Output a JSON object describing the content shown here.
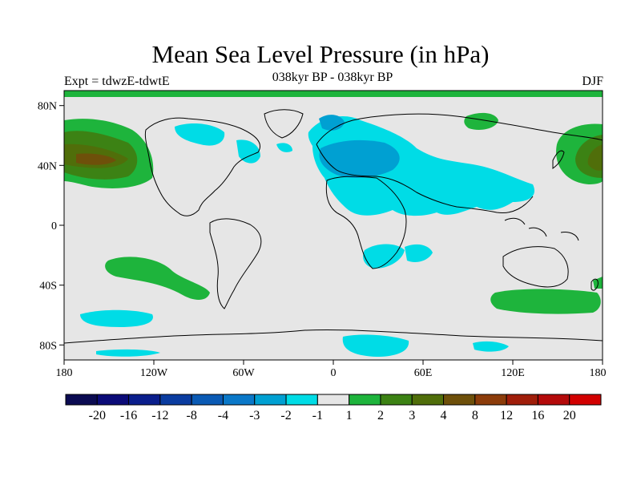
{
  "header": {
    "title": "Mean Sea Level Pressure (in hPa)",
    "left_label": "Expt = tdwzE-tdwtE",
    "center_label": "038kyr BP - 038kyr BP",
    "right_label": "DJF"
  },
  "axes": {
    "lat_ticks": [
      "80N",
      "40N",
      "0",
      "40S",
      "80S"
    ],
    "lon_ticks": [
      "180",
      "120W",
      "60W",
      "0",
      "60E",
      "120E",
      "180"
    ]
  },
  "colorbar": {
    "labels": [
      "-20",
      "-16",
      "-12",
      "-8",
      "-4",
      "-3",
      "-2",
      "-1",
      "1",
      "2",
      "3",
      "4",
      "8",
      "12",
      "16",
      "20"
    ],
    "colors": [
      "#0b0b52",
      "#0b0b78",
      "#0a1e8c",
      "#0a3ca0",
      "#0a5ab4",
      "#0a78c8",
      "#00a0d2",
      "#00dce6",
      "#e6e6e6",
      "#1eb43c",
      "#3c8214",
      "#506e0a",
      "#6e500a",
      "#8c3c0a",
      "#a01e0a",
      "#b40a0a",
      "#d20000"
    ]
  },
  "map_colors": {
    "background": "#e6e6e6",
    "neg1": "#00dce6",
    "neg2": "#00a0d2",
    "pos1": "#1eb43c",
    "pos2": "#3c8214",
    "pos3": "#506e0a",
    "pos4": "#6e500a"
  }
}
